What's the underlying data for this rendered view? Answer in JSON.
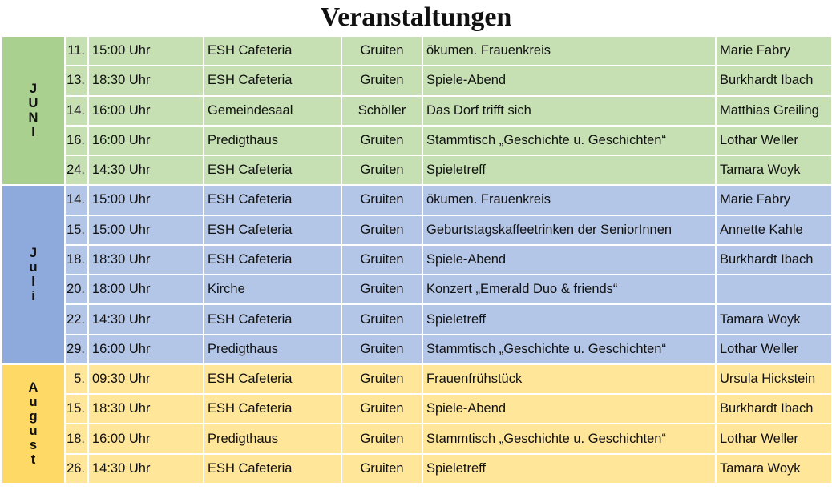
{
  "title": "Veranstaltungen",
  "colors": {
    "juni_row": "#c6e0b4",
    "juni_month": "#a9d08e",
    "juli_row": "#b4c6e7",
    "juli_month": "#8ea9db",
    "august_row": "#ffe699",
    "august_month": "#ffd966"
  },
  "months": [
    {
      "key": "juni",
      "letters": [
        "J",
        "U",
        "N",
        "I"
      ],
      "events": [
        {
          "day": "11.",
          "time": "15:00 Uhr",
          "place": "ESH Cafeteria",
          "city": "Gruiten",
          "event": "ökumen. Frauenkreis",
          "contact": "Marie Fabry"
        },
        {
          "day": "13.",
          "time": "18:30 Uhr",
          "place": "ESH Cafeteria",
          "city": "Gruiten",
          "event": "Spiele-Abend",
          "contact": "Burkhardt Ibach"
        },
        {
          "day": "14.",
          "time": "16:00 Uhr",
          "place": "Gemeindesaal",
          "city": "Schöller",
          "event": "Das Dorf trifft sich",
          "contact": "Matthias Greiling"
        },
        {
          "day": "16.",
          "time": "16:00 Uhr",
          "place": "Predigthaus",
          "city": "Gruiten",
          "event": "Stammtisch „Geschichte u. Geschichten“",
          "contact": "Lothar Weller"
        },
        {
          "day": "24.",
          "time": "14:30 Uhr",
          "place": "ESH Cafeteria",
          "city": "Gruiten",
          "event": "Spieletreff",
          "contact": "Tamara Woyk"
        }
      ]
    },
    {
      "key": "juli",
      "letters": [
        "J",
        "u",
        "l",
        "i"
      ],
      "events": [
        {
          "day": "14.",
          "time": "15:00 Uhr",
          "place": "ESH Cafeteria",
          "city": "Gruiten",
          "event": "ökumen. Frauenkreis",
          "contact": "Marie Fabry"
        },
        {
          "day": "15.",
          "time": "15:00 Uhr",
          "place": "ESH Cafeteria",
          "city": "Gruiten",
          "event": "Geburtstagskaffeetrinken der SeniorInnen",
          "contact": "Annette Kahle"
        },
        {
          "day": "18.",
          "time": "18:30 Uhr",
          "place": "ESH Cafeteria",
          "city": "Gruiten",
          "event": "Spiele-Abend",
          "contact": "Burkhardt Ibach"
        },
        {
          "day": "20.",
          "time": "18:00 Uhr",
          "place": "Kirche",
          "city": "Gruiten",
          "event": "Konzert „Emerald Duo & friends“",
          "contact": ""
        },
        {
          "day": "22.",
          "time": "14:30 Uhr",
          "place": "ESH Cafeteria",
          "city": "Gruiten",
          "event": "Spieletreff",
          "contact": "Tamara Woyk"
        },
        {
          "day": "29.",
          "time": "16:00 Uhr",
          "place": "Predigthaus",
          "city": "Gruiten",
          "event": "Stammtisch „Geschichte u. Geschichten“",
          "contact": "Lothar Weller"
        }
      ]
    },
    {
      "key": "august",
      "letters": [
        "A",
        "u",
        "g",
        "u",
        "s",
        "t"
      ],
      "events": [
        {
          "day": "5.",
          "time": "09:30 Uhr",
          "place": "ESH Cafeteria",
          "city": "Gruiten",
          "event": "Frauenfrühstück",
          "contact": "Ursula Hickstein"
        },
        {
          "day": "15.",
          "time": "18:30 Uhr",
          "place": "ESH Cafeteria",
          "city": "Gruiten",
          "event": "Spiele-Abend",
          "contact": "Burkhardt Ibach"
        },
        {
          "day": "18.",
          "time": "16:00 Uhr",
          "place": "Predigthaus",
          "city": "Gruiten",
          "event": "Stammtisch „Geschichte u. Geschichten“",
          "contact": "Lothar Weller"
        },
        {
          "day": "26.",
          "time": "14:30 Uhr",
          "place": "ESH Cafeteria",
          "city": "Gruiten",
          "event": "Spieletreff",
          "contact": "Tamara Woyk"
        }
      ]
    }
  ]
}
